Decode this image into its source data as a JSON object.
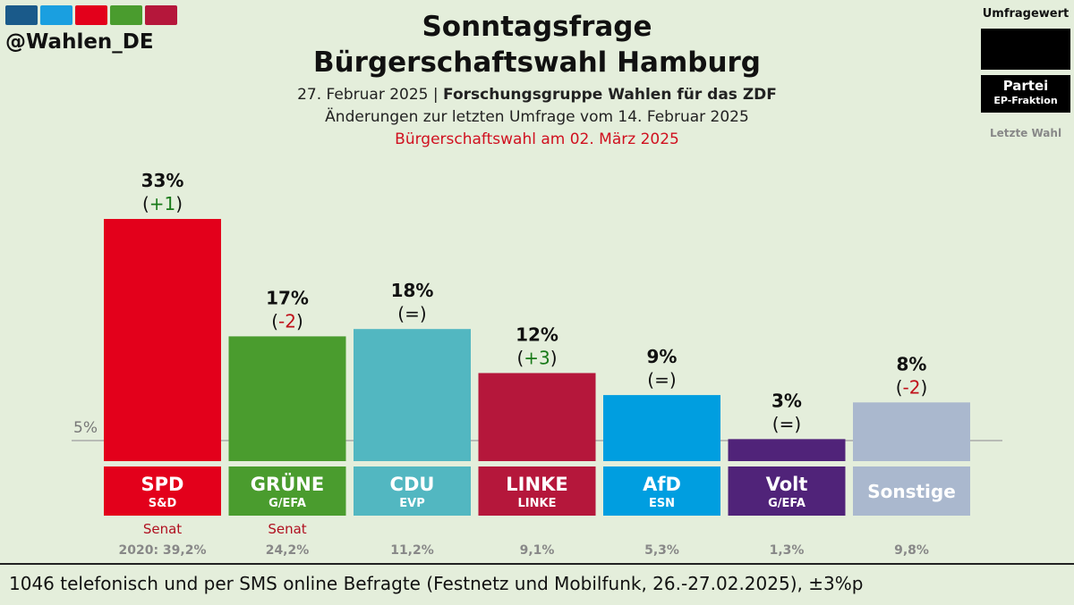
{
  "handle": "@Wahlen_DE",
  "logo_colors": [
    "#1a5a8a",
    "#1a9fe0",
    "#e3001b",
    "#4a9c2e",
    "#b5173b"
  ],
  "title_line1": "Sonntagsfrage",
  "title_line2": "Bürgerschaftswahl Hamburg",
  "subtitle_date": "27. Februar 2025 |",
  "subtitle_institute": "Forschungsgruppe Wahlen für das ZDF",
  "subtitle_changes": "Änderungen zur letzten Umfrage vom 14. Februar 2025",
  "subtitle_election": "Bürgerschaftswahl am 02. März 2025",
  "legend": {
    "title": "Umfragewert",
    "party": "Partei",
    "fraction": "EP-Fraktion",
    "last": "Letzte Wahl"
  },
  "footer": "1046 telefonisch und per SMS online Befragte (Festnetz und Mobilfunk, 26.-27.02.2025), ±3%p",
  "chart_data": {
    "type": "bar",
    "threshold": 5,
    "threshold_label": "5%",
    "ylim": [
      0,
      33
    ],
    "categories": [
      "SPD",
      "GRÜNE",
      "CDU",
      "LINKE",
      "AfD",
      "Volt",
      "Sonstige"
    ],
    "fractions": [
      "S&D",
      "G/EFA",
      "EVP",
      "LINKE",
      "ESN",
      "G/EFA",
      ""
    ],
    "values": [
      33,
      17,
      18,
      12,
      9,
      3,
      8
    ],
    "value_labels": [
      "33%",
      "17%",
      "18%",
      "12%",
      "9%",
      "3%",
      "8%"
    ],
    "change_labels": [
      "+1",
      "-2",
      "=",
      "+3",
      "=",
      "=",
      "-2"
    ],
    "change_colors": [
      "#1a7a1a",
      "#c0101a",
      "#111111",
      "#1a7a1a",
      "#111111",
      "#111111",
      "#c0101a"
    ],
    "colors": [
      "#e3001b",
      "#4a9c2e",
      "#52b7c1",
      "#b5173b",
      "#009ee0",
      "#502379",
      "#aab8ce"
    ],
    "senat": [
      "Senat",
      "Senat",
      "",
      "",
      "",
      "",
      ""
    ],
    "last_election": [
      "2020: 39,2%",
      "24,2%",
      "11,2%",
      "9,1%",
      "5,3%",
      "1,3%",
      "9,8%"
    ]
  }
}
